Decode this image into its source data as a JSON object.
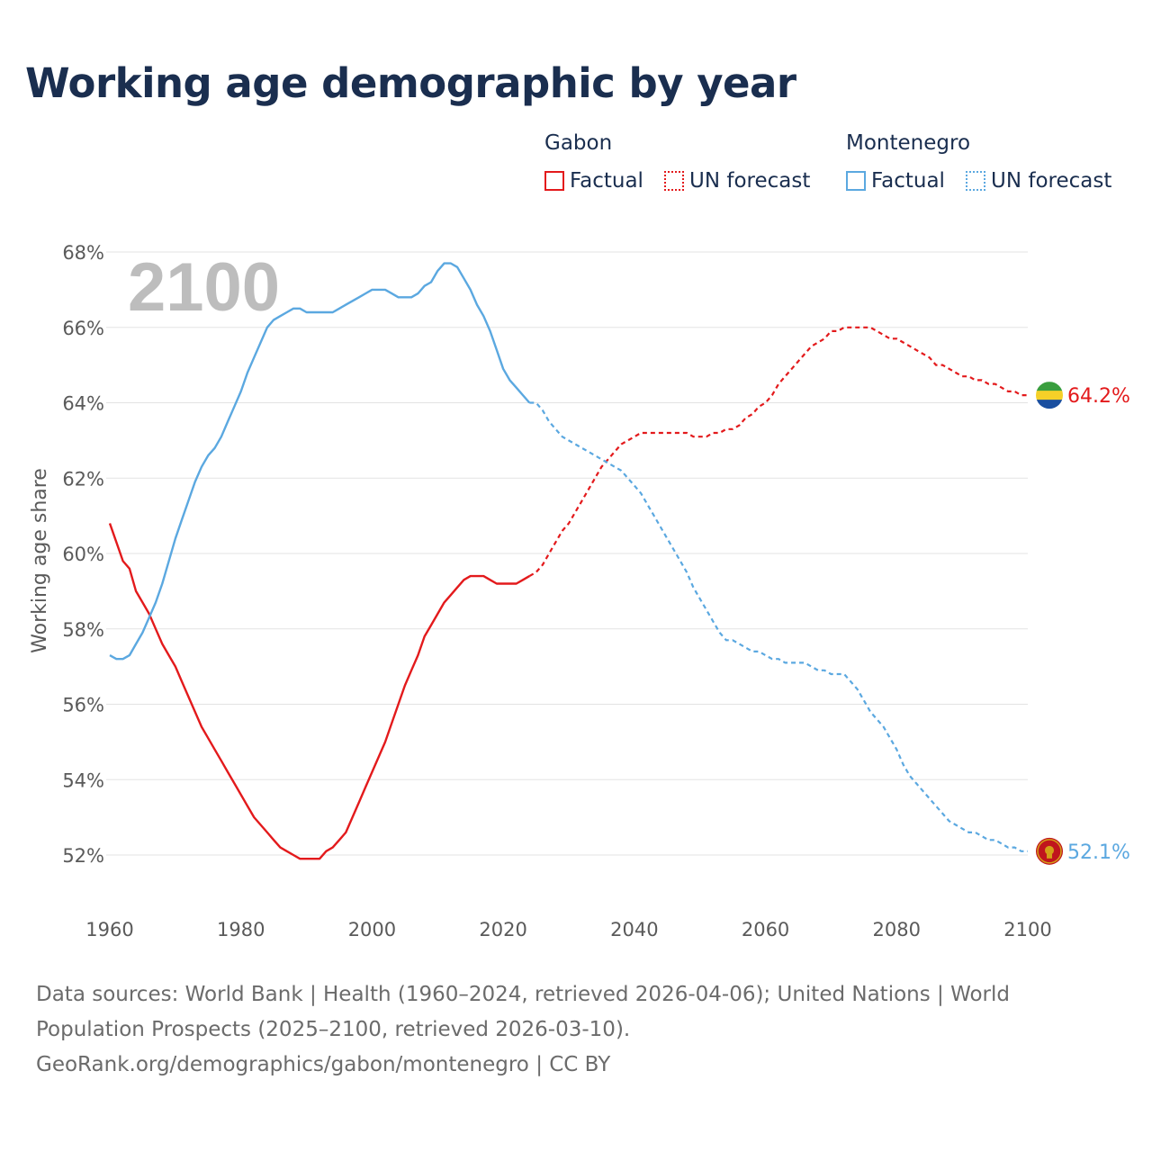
{
  "title": "Working age demographic by year",
  "legend": {
    "groups": [
      {
        "country": "Gabon",
        "factual_label": "Factual",
        "forecast_label": "UN forecast",
        "color": "#e31a1c"
      },
      {
        "country": "Montenegro",
        "factual_label": "Factual",
        "forecast_label": "UN forecast",
        "color": "#5ba8e0"
      }
    ]
  },
  "footer": {
    "sources": "Data sources: World Bank | Health (1960–2024, retrieved 2026-04-06); United Nations | World Population Prospects (2025–2100, retrieved 2026-03-10).",
    "credit": "GeoRank.org/demographics/gabon/montenegro | CC BY"
  },
  "chart_data": {
    "type": "line",
    "title": "Working age demographic by year",
    "xlabel": "",
    "ylabel": "Working age share",
    "year_label": "2100",
    "xlim": [
      1960,
      2103
    ],
    "ylim": [
      51,
      68
    ],
    "x_ticks": [
      1960,
      1980,
      2000,
      2020,
      2040,
      2060,
      2080,
      2100
    ],
    "y_ticks": [
      52,
      54,
      56,
      58,
      60,
      62,
      64,
      66,
      68
    ],
    "y_tick_labels": [
      "52%",
      "54%",
      "56%",
      "58%",
      "60%",
      "62%",
      "64%",
      "66%",
      "68%"
    ],
    "grid": true,
    "factual_end_year": 2024,
    "series": [
      {
        "name": "Gabon",
        "color": "#e31a1c",
        "end_label": "64.2%",
        "end_value": 64.2,
        "flag_colors": [
          "#3a9e3e",
          "#f5d028",
          "#1a4fa0"
        ],
        "points": [
          [
            1960,
            60.8
          ],
          [
            1961,
            60.3
          ],
          [
            1962,
            59.8
          ],
          [
            1963,
            59.6
          ],
          [
            1964,
            59.0
          ],
          [
            1965,
            58.7
          ],
          [
            1966,
            58.4
          ],
          [
            1967,
            58.0
          ],
          [
            1968,
            57.6
          ],
          [
            1969,
            57.3
          ],
          [
            1970,
            57.0
          ],
          [
            1971,
            56.6
          ],
          [
            1972,
            56.2
          ],
          [
            1973,
            55.8
          ],
          [
            1974,
            55.4
          ],
          [
            1975,
            55.1
          ],
          [
            1976,
            54.8
          ],
          [
            1977,
            54.5
          ],
          [
            1978,
            54.2
          ],
          [
            1979,
            53.9
          ],
          [
            1980,
            53.6
          ],
          [
            1981,
            53.3
          ],
          [
            1982,
            53.0
          ],
          [
            1983,
            52.8
          ],
          [
            1984,
            52.6
          ],
          [
            1985,
            52.4
          ],
          [
            1986,
            52.2
          ],
          [
            1987,
            52.1
          ],
          [
            1988,
            52.0
          ],
          [
            1989,
            51.9
          ],
          [
            1990,
            51.9
          ],
          [
            1991,
            51.9
          ],
          [
            1992,
            51.9
          ],
          [
            1993,
            52.1
          ],
          [
            1994,
            52.2
          ],
          [
            1995,
            52.4
          ],
          [
            1996,
            52.6
          ],
          [
            1997,
            53.0
          ],
          [
            1998,
            53.4
          ],
          [
            1999,
            53.8
          ],
          [
            2000,
            54.2
          ],
          [
            2001,
            54.6
          ],
          [
            2002,
            55.0
          ],
          [
            2003,
            55.5
          ],
          [
            2004,
            56.0
          ],
          [
            2005,
            56.5
          ],
          [
            2006,
            56.9
          ],
          [
            2007,
            57.3
          ],
          [
            2008,
            57.8
          ],
          [
            2009,
            58.1
          ],
          [
            2010,
            58.4
          ],
          [
            2011,
            58.7
          ],
          [
            2012,
            58.9
          ],
          [
            2013,
            59.1
          ],
          [
            2014,
            59.3
          ],
          [
            2015,
            59.4
          ],
          [
            2016,
            59.4
          ],
          [
            2017,
            59.4
          ],
          [
            2018,
            59.3
          ],
          [
            2019,
            59.2
          ],
          [
            2020,
            59.2
          ],
          [
            2021,
            59.2
          ],
          [
            2022,
            59.2
          ],
          [
            2023,
            59.3
          ],
          [
            2024,
            59.4
          ],
          [
            2025,
            59.5
          ],
          [
            2026,
            59.7
          ],
          [
            2027,
            60.0
          ],
          [
            2028,
            60.3
          ],
          [
            2029,
            60.6
          ],
          [
            2030,
            60.8
          ],
          [
            2031,
            61.1
          ],
          [
            2032,
            61.4
          ],
          [
            2033,
            61.7
          ],
          [
            2034,
            62.0
          ],
          [
            2035,
            62.3
          ],
          [
            2036,
            62.5
          ],
          [
            2037,
            62.7
          ],
          [
            2038,
            62.9
          ],
          [
            2039,
            63.0
          ],
          [
            2040,
            63.1
          ],
          [
            2041,
            63.2
          ],
          [
            2042,
            63.2
          ],
          [
            2043,
            63.2
          ],
          [
            2044,
            63.2
          ],
          [
            2045,
            63.2
          ],
          [
            2046,
            63.2
          ],
          [
            2047,
            63.2
          ],
          [
            2048,
            63.2
          ],
          [
            2049,
            63.1
          ],
          [
            2050,
            63.1
          ],
          [
            2051,
            63.1
          ],
          [
            2052,
            63.2
          ],
          [
            2053,
            63.2
          ],
          [
            2054,
            63.3
          ],
          [
            2055,
            63.3
          ],
          [
            2056,
            63.4
          ],
          [
            2057,
            63.6
          ],
          [
            2058,
            63.7
          ],
          [
            2059,
            63.9
          ],
          [
            2060,
            64.0
          ],
          [
            2061,
            64.2
          ],
          [
            2062,
            64.5
          ],
          [
            2063,
            64.7
          ],
          [
            2064,
            64.9
          ],
          [
            2065,
            65.1
          ],
          [
            2066,
            65.3
          ],
          [
            2067,
            65.5
          ],
          [
            2068,
            65.6
          ],
          [
            2069,
            65.7
          ],
          [
            2070,
            65.9
          ],
          [
            2071,
            65.9
          ],
          [
            2072,
            66.0
          ],
          [
            2073,
            66.0
          ],
          [
            2074,
            66.0
          ],
          [
            2075,
            66.0
          ],
          [
            2076,
            66.0
          ],
          [
            2077,
            65.9
          ],
          [
            2078,
            65.8
          ],
          [
            2079,
            65.7
          ],
          [
            2080,
            65.7
          ],
          [
            2081,
            65.6
          ],
          [
            2082,
            65.5
          ],
          [
            2083,
            65.4
          ],
          [
            2084,
            65.3
          ],
          [
            2085,
            65.2
          ],
          [
            2086,
            65.0
          ],
          [
            2087,
            65.0
          ],
          [
            2088,
            64.9
          ],
          [
            2089,
            64.8
          ],
          [
            2090,
            64.7
          ],
          [
            2091,
            64.7
          ],
          [
            2092,
            64.6
          ],
          [
            2093,
            64.6
          ],
          [
            2094,
            64.5
          ],
          [
            2095,
            64.5
          ],
          [
            2096,
            64.4
          ],
          [
            2097,
            64.3
          ],
          [
            2098,
            64.3
          ],
          [
            2099,
            64.2
          ],
          [
            2100,
            64.2
          ]
        ]
      },
      {
        "name": "Montenegro",
        "color": "#5ba8e0",
        "end_label": "52.1%",
        "end_value": 52.1,
        "flag_colors": [
          "#c0161d",
          "#d4a017"
        ],
        "points": [
          [
            1960,
            57.3
          ],
          [
            1961,
            57.2
          ],
          [
            1962,
            57.2
          ],
          [
            1963,
            57.3
          ],
          [
            1964,
            57.6
          ],
          [
            1965,
            57.9
          ],
          [
            1966,
            58.3
          ],
          [
            1967,
            58.7
          ],
          [
            1968,
            59.2
          ],
          [
            1969,
            59.8
          ],
          [
            1970,
            60.4
          ],
          [
            1971,
            60.9
          ],
          [
            1972,
            61.4
          ],
          [
            1973,
            61.9
          ],
          [
            1974,
            62.3
          ],
          [
            1975,
            62.6
          ],
          [
            1976,
            62.8
          ],
          [
            1977,
            63.1
          ],
          [
            1978,
            63.5
          ],
          [
            1979,
            63.9
          ],
          [
            1980,
            64.3
          ],
          [
            1981,
            64.8
          ],
          [
            1982,
            65.2
          ],
          [
            1983,
            65.6
          ],
          [
            1984,
            66.0
          ],
          [
            1985,
            66.2
          ],
          [
            1986,
            66.3
          ],
          [
            1987,
            66.4
          ],
          [
            1988,
            66.5
          ],
          [
            1989,
            66.5
          ],
          [
            1990,
            66.4
          ],
          [
            1991,
            66.4
          ],
          [
            1992,
            66.4
          ],
          [
            1993,
            66.4
          ],
          [
            1994,
            66.4
          ],
          [
            1995,
            66.5
          ],
          [
            1996,
            66.6
          ],
          [
            1997,
            66.7
          ],
          [
            1998,
            66.8
          ],
          [
            1999,
            66.9
          ],
          [
            2000,
            67.0
          ],
          [
            2001,
            67.0
          ],
          [
            2002,
            67.0
          ],
          [
            2003,
            66.9
          ],
          [
            2004,
            66.8
          ],
          [
            2005,
            66.8
          ],
          [
            2006,
            66.8
          ],
          [
            2007,
            66.9
          ],
          [
            2008,
            67.1
          ],
          [
            2009,
            67.2
          ],
          [
            2010,
            67.5
          ],
          [
            2011,
            67.7
          ],
          [
            2012,
            67.7
          ],
          [
            2013,
            67.6
          ],
          [
            2014,
            67.3
          ],
          [
            2015,
            67.0
          ],
          [
            2016,
            66.6
          ],
          [
            2017,
            66.3
          ],
          [
            2018,
            65.9
          ],
          [
            2019,
            65.4
          ],
          [
            2020,
            64.9
          ],
          [
            2021,
            64.6
          ],
          [
            2022,
            64.4
          ],
          [
            2023,
            64.2
          ],
          [
            2024,
            64.0
          ],
          [
            2025,
            64.0
          ],
          [
            2026,
            63.8
          ],
          [
            2027,
            63.5
          ],
          [
            2028,
            63.3
          ],
          [
            2029,
            63.1
          ],
          [
            2030,
            63.0
          ],
          [
            2031,
            62.9
          ],
          [
            2032,
            62.8
          ],
          [
            2033,
            62.7
          ],
          [
            2034,
            62.6
          ],
          [
            2035,
            62.5
          ],
          [
            2036,
            62.4
          ],
          [
            2037,
            62.3
          ],
          [
            2038,
            62.2
          ],
          [
            2039,
            62.0
          ],
          [
            2040,
            61.8
          ],
          [
            2041,
            61.6
          ],
          [
            2042,
            61.3
          ],
          [
            2043,
            61.0
          ],
          [
            2044,
            60.7
          ],
          [
            2045,
            60.4
          ],
          [
            2046,
            60.1
          ],
          [
            2047,
            59.8
          ],
          [
            2048,
            59.5
          ],
          [
            2049,
            59.1
          ],
          [
            2050,
            58.8
          ],
          [
            2051,
            58.5
          ],
          [
            2052,
            58.2
          ],
          [
            2053,
            57.9
          ],
          [
            2054,
            57.7
          ],
          [
            2055,
            57.7
          ],
          [
            2056,
            57.6
          ],
          [
            2057,
            57.5
          ],
          [
            2058,
            57.4
          ],
          [
            2059,
            57.4
          ],
          [
            2060,
            57.3
          ],
          [
            2061,
            57.2
          ],
          [
            2062,
            57.2
          ],
          [
            2063,
            57.1
          ],
          [
            2064,
            57.1
          ],
          [
            2065,
            57.1
          ],
          [
            2066,
            57.1
          ],
          [
            2067,
            57.0
          ],
          [
            2068,
            56.9
          ],
          [
            2069,
            56.9
          ],
          [
            2070,
            56.8
          ],
          [
            2071,
            56.8
          ],
          [
            2072,
            56.8
          ],
          [
            2073,
            56.6
          ],
          [
            2074,
            56.4
          ],
          [
            2075,
            56.1
          ],
          [
            2076,
            55.8
          ],
          [
            2077,
            55.6
          ],
          [
            2078,
            55.4
          ],
          [
            2079,
            55.1
          ],
          [
            2080,
            54.8
          ],
          [
            2081,
            54.4
          ],
          [
            2082,
            54.1
          ],
          [
            2083,
            53.9
          ],
          [
            2084,
            53.7
          ],
          [
            2085,
            53.5
          ],
          [
            2086,
            53.3
          ],
          [
            2087,
            53.1
          ],
          [
            2088,
            52.9
          ],
          [
            2089,
            52.8
          ],
          [
            2090,
            52.7
          ],
          [
            2091,
            52.6
          ],
          [
            2092,
            52.6
          ],
          [
            2093,
            52.5
          ],
          [
            2094,
            52.4
          ],
          [
            2095,
            52.4
          ],
          [
            2096,
            52.3
          ],
          [
            2097,
            52.2
          ],
          [
            2098,
            52.2
          ],
          [
            2099,
            52.1
          ],
          [
            2100,
            52.1
          ]
        ]
      }
    ]
  }
}
